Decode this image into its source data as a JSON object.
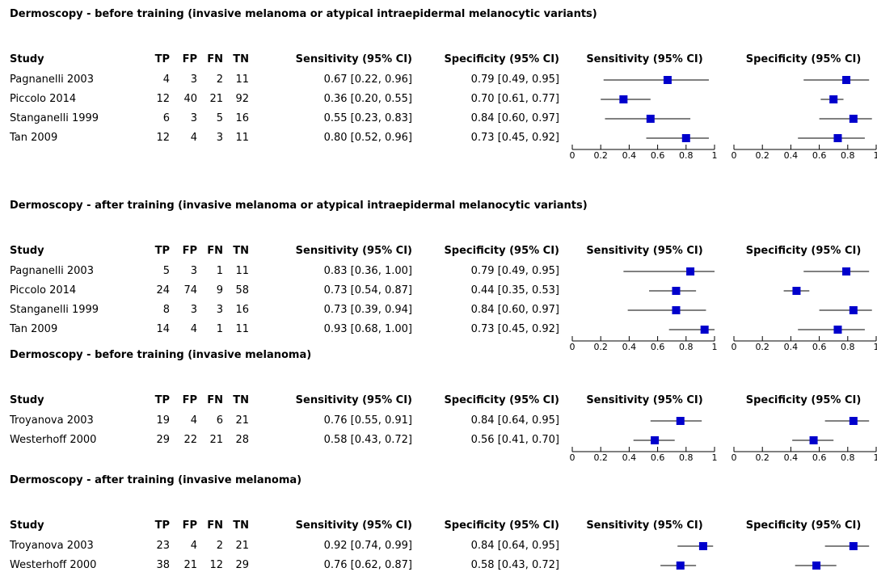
{
  "colors": {
    "marker": "#0000cc",
    "line": "#000000",
    "background": "#ffffff"
  },
  "columns": {
    "study": "Study",
    "tp": "TP",
    "fp": "FP",
    "fn": "FN",
    "tn": "TN",
    "sensitivity": "Sensitivity (95% CI)",
    "specificity": "Specificity (95% CI)",
    "sens_plot": "Sensitivity (95% CI)",
    "spec_plot": "Specificity (95% CI)"
  },
  "axis_ticks": [
    "0",
    "0.2",
    "0.4",
    "0.6",
    "0.8",
    "1"
  ],
  "chart_data": {
    "type": "forest",
    "xlim": [
      0,
      1
    ],
    "groups": [
      {
        "title": "Dermoscopy - before training (invasive melanoma or atypical intraepidermal melanocytic variants)",
        "rows": [
          {
            "study": "Pagnanelli 2003",
            "tp": 4,
            "fp": 3,
            "fn": 2,
            "tn": 11,
            "sens_text": "0.67 [0.22, 0.96]",
            "spec_text": "0.79 [0.49, 0.95]",
            "sens": 0.67,
            "sens_lo": 0.22,
            "sens_hi": 0.96,
            "spec": 0.79,
            "spec_lo": 0.49,
            "spec_hi": 0.95
          },
          {
            "study": "Piccolo 2014",
            "tp": 12,
            "fp": 40,
            "fn": 21,
            "tn": 92,
            "sens_text": "0.36 [0.20, 0.55]",
            "spec_text": "0.70 [0.61, 0.77]",
            "sens": 0.36,
            "sens_lo": 0.2,
            "sens_hi": 0.55,
            "spec": 0.7,
            "spec_lo": 0.61,
            "spec_hi": 0.77
          },
          {
            "study": "Stanganelli 1999",
            "tp": 6,
            "fp": 3,
            "fn": 5,
            "tn": 16,
            "sens_text": "0.55 [0.23, 0.83]",
            "spec_text": "0.84 [0.60, 0.97]",
            "sens": 0.55,
            "sens_lo": 0.23,
            "sens_hi": 0.83,
            "spec": 0.84,
            "spec_lo": 0.6,
            "spec_hi": 0.97
          },
          {
            "study": "Tan 2009",
            "tp": 12,
            "fp": 4,
            "fn": 3,
            "tn": 11,
            "sens_text": "0.80 [0.52, 0.96]",
            "spec_text": "0.73 [0.45, 0.92]",
            "sens": 0.8,
            "sens_lo": 0.52,
            "sens_hi": 0.96,
            "spec": 0.73,
            "spec_lo": 0.45,
            "spec_hi": 0.92
          }
        ]
      },
      {
        "title": "Dermoscopy - after training (invasive melanoma or atypical intraepidermal melanocytic variants)",
        "rows": [
          {
            "study": "Pagnanelli 2003",
            "tp": 5,
            "fp": 3,
            "fn": 1,
            "tn": 11,
            "sens_text": "0.83 [0.36, 1.00]",
            "spec_text": "0.79 [0.49, 0.95]",
            "sens": 0.83,
            "sens_lo": 0.36,
            "sens_hi": 1.0,
            "spec": 0.79,
            "spec_lo": 0.49,
            "spec_hi": 0.95
          },
          {
            "study": "Piccolo 2014",
            "tp": 24,
            "fp": 74,
            "fn": 9,
            "tn": 58,
            "sens_text": "0.73 [0.54, 0.87]",
            "spec_text": "0.44 [0.35, 0.53]",
            "sens": 0.73,
            "sens_lo": 0.54,
            "sens_hi": 0.87,
            "spec": 0.44,
            "spec_lo": 0.35,
            "spec_hi": 0.53
          },
          {
            "study": "Stanganelli 1999",
            "tp": 8,
            "fp": 3,
            "fn": 3,
            "tn": 16,
            "sens_text": "0.73 [0.39, 0.94]",
            "spec_text": "0.84 [0.60, 0.97]",
            "sens": 0.73,
            "sens_lo": 0.39,
            "sens_hi": 0.94,
            "spec": 0.84,
            "spec_lo": 0.6,
            "spec_hi": 0.97
          },
          {
            "study": "Tan 2009",
            "tp": 14,
            "fp": 4,
            "fn": 1,
            "tn": 11,
            "sens_text": "0.93 [0.68, 1.00]",
            "spec_text": "0.73 [0.45, 0.92]",
            "sens": 0.93,
            "sens_lo": 0.68,
            "sens_hi": 1.0,
            "spec": 0.73,
            "spec_lo": 0.45,
            "spec_hi": 0.92
          }
        ]
      },
      {
        "title": "Dermoscopy - before training (invasive melanoma)",
        "rows": [
          {
            "study": "Troyanova 2003",
            "tp": 19,
            "fp": 4,
            "fn": 6,
            "tn": 21,
            "sens_text": "0.76 [0.55, 0.91]",
            "spec_text": "0.84 [0.64, 0.95]",
            "sens": 0.76,
            "sens_lo": 0.55,
            "sens_hi": 0.91,
            "spec": 0.84,
            "spec_lo": 0.64,
            "spec_hi": 0.95
          },
          {
            "study": "Westerhoff 2000",
            "tp": 29,
            "fp": 22,
            "fn": 21,
            "tn": 28,
            "sens_text": "0.58 [0.43, 0.72]",
            "spec_text": "0.56 [0.41, 0.70]",
            "sens": 0.58,
            "sens_lo": 0.43,
            "sens_hi": 0.72,
            "spec": 0.56,
            "spec_lo": 0.41,
            "spec_hi": 0.7
          }
        ]
      },
      {
        "title": "Dermoscopy - after training (invasive melanoma)",
        "rows": [
          {
            "study": "Troyanova 2003",
            "tp": 23,
            "fp": 4,
            "fn": 2,
            "tn": 21,
            "sens_text": "0.92 [0.74, 0.99]",
            "spec_text": "0.84 [0.64, 0.95]",
            "sens": 0.92,
            "sens_lo": 0.74,
            "sens_hi": 0.99,
            "spec": 0.84,
            "spec_lo": 0.64,
            "spec_hi": 0.95
          },
          {
            "study": "Westerhoff 2000",
            "tp": 38,
            "fp": 21,
            "fn": 12,
            "tn": 29,
            "sens_text": "0.76 [0.62, 0.87]",
            "spec_text": "0.58 [0.43, 0.72]",
            "sens": 0.76,
            "sens_lo": 0.62,
            "sens_hi": 0.87,
            "spec": 0.58,
            "spec_lo": 0.43,
            "spec_hi": 0.72
          }
        ]
      }
    ]
  }
}
